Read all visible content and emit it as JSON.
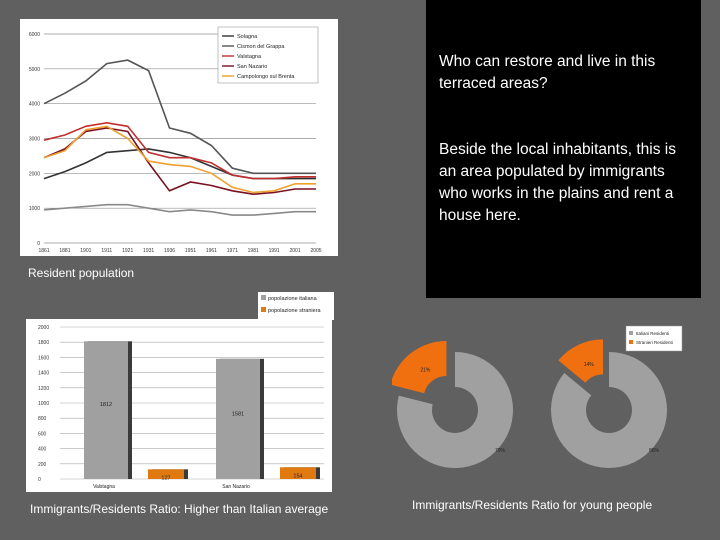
{
  "slide": {
    "question": "Who can restore and live in this terraced areas?",
    "answer": "Beside the local inhabitants, this is an area populated by immigrants who works in the plains and rent a house here.",
    "caption_population": "Resident population",
    "caption_ratio": "Immigrants/Residents Ratio: Higher than Italian average",
    "caption_young": "Immigrants/Residents Ratio for young people"
  },
  "chart_data": [
    {
      "type": "line",
      "x": [
        "1861",
        "1881",
        "1901",
        "1911",
        "1921",
        "1931",
        "1936",
        "1951",
        "1961",
        "1971",
        "1981",
        "1991",
        "2001",
        "2005"
      ],
      "ylim": [
        0,
        6000
      ],
      "yticks": [
        0,
        1000,
        2000,
        3000,
        4000,
        5000,
        6000
      ],
      "grid": true,
      "legend": "top-right",
      "series": [
        {
          "name": "Solagna",
          "color": "#333333",
          "values": [
            1850,
            2050,
            2300,
            2600,
            2650,
            2700,
            2600,
            2450,
            2200,
            1950,
            1850,
            1850,
            1850,
            1850
          ]
        },
        {
          "name": "Cismon del Grappa",
          "color": "#555555",
          "values": [
            4000,
            4300,
            4650,
            5150,
            5250,
            4950,
            3300,
            3150,
            2800,
            2150,
            2000,
            2000,
            2000,
            2000
          ]
        },
        {
          "name": "Valstagna",
          "color": "#c03030",
          "values": [
            2950,
            3100,
            3350,
            3450,
            3350,
            2600,
            2450,
            2450,
            2300,
            1950,
            1850,
            1850,
            1900,
            1900
          ]
        },
        {
          "name": "San Nazario",
          "color": "#7a1020",
          "values": [
            2450,
            2700,
            3200,
            3300,
            3200,
            2300,
            1500,
            1750,
            1650,
            1500,
            1400,
            1450,
            1550,
            1550
          ]
        },
        {
          "name": "Campolongo sul Brenta",
          "color": "#f0a030",
          "values": [
            2450,
            2650,
            3250,
            3350,
            3000,
            2350,
            2250,
            2200,
            2000,
            1600,
            1450,
            1500,
            1700,
            1700
          ]
        },
        {
          "name": "",
          "color": "#8a8a8a",
          "values": [
            950,
            1000,
            1050,
            1100,
            1100,
            1000,
            900,
            950,
            900,
            800,
            800,
            850,
            900,
            900
          ]
        }
      ]
    },
    {
      "type": "bar",
      "categories": [
        "Valstagna",
        "San Nazario"
      ],
      "ylim": [
        0,
        2000
      ],
      "yticks": [
        0,
        200,
        400,
        600,
        800,
        1000,
        1200,
        1400,
        1600,
        1800,
        2000
      ],
      "legend": "top-right",
      "series": [
        {
          "name": "popolazione italiana",
          "color": "#a0a0a0",
          "values": [
            1812,
            1581
          ]
        },
        {
          "name": "popolazione straniera",
          "color": "#e07a10",
          "values": [
            127,
            154
          ]
        }
      ],
      "value_labels": [
        "1812",
        "127",
        "1581",
        "154"
      ]
    },
    {
      "type": "pie",
      "charts": [
        {
          "slices": [
            {
              "label": "21%",
              "value": 21,
              "color": "#f07010"
            },
            {
              "label": "79%",
              "value": 79,
              "color": "#a0a0a0"
            }
          ]
        },
        {
          "slices": [
            {
              "label": "14%",
              "value": 14,
              "color": "#f07010"
            },
            {
              "label": "86%",
              "value": 86,
              "color": "#a0a0a0"
            }
          ]
        }
      ],
      "legend": "top-right",
      "legend_items": [
        {
          "label": "Italiani Residenti",
          "color": "#a0a0a0"
        },
        {
          "label": "Stranieri Residenti",
          "color": "#f07010"
        }
      ]
    }
  ]
}
